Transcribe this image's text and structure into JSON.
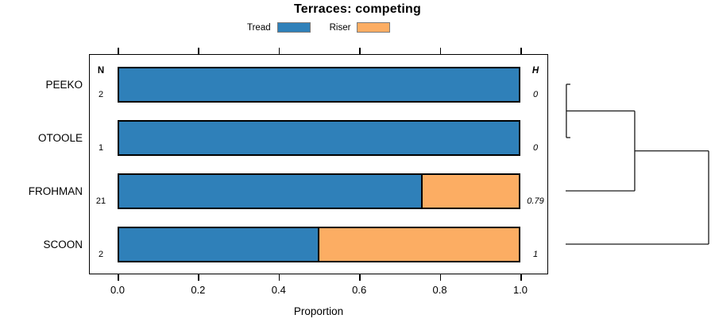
{
  "title": "Terraces: competing",
  "legend": {
    "items": [
      {
        "label": "Tread",
        "color": "#2f80b9"
      },
      {
        "label": "Riser",
        "color": "#fcad63"
      }
    ]
  },
  "axis": {
    "label": "Proportion",
    "tick_labels": [
      "0.0",
      "0.2",
      "0.4",
      "0.6",
      "0.8",
      "1.0"
    ],
    "tick_values": [
      0,
      0.2,
      0.4,
      0.6,
      0.8,
      1.0
    ]
  },
  "columns": {
    "n_header": "N",
    "h_header": "H"
  },
  "chart_data": {
    "type": "bar",
    "orientation": "horizontal",
    "stacked": true,
    "title": "Terraces: competing",
    "xlabel": "Proportion",
    "xlim": [
      0,
      1
    ],
    "grid": false,
    "legend_position": "top-center",
    "categories": [
      "PEEKO",
      "OTOOLE",
      "FROHMAN",
      "SCOON"
    ],
    "series": [
      {
        "name": "Tread",
        "color": "#2f80b9",
        "values": [
          1.0,
          1.0,
          0.76,
          0.5
        ]
      },
      {
        "name": "Riser",
        "color": "#fcad63",
        "values": [
          0.0,
          0.0,
          0.24,
          0.5
        ]
      }
    ],
    "row_annotations": {
      "N": [
        "2",
        "1",
        "21",
        "2"
      ],
      "H": [
        "0",
        "0",
        "0.79",
        "1"
      ]
    },
    "dendrogram": {
      "side": "right",
      "merges": [
        {
          "members": [
            "PEEKO",
            "OTOOLE"
          ],
          "height": 0.005
        },
        {
          "members": [
            "PEEKO+OTOOLE",
            "FROHMAN"
          ],
          "height": 0.483
        },
        {
          "members": [
            "PEEKO+OTOOLE+FROHMAN",
            "SCOON"
          ],
          "height": 1.0
        }
      ]
    }
  }
}
